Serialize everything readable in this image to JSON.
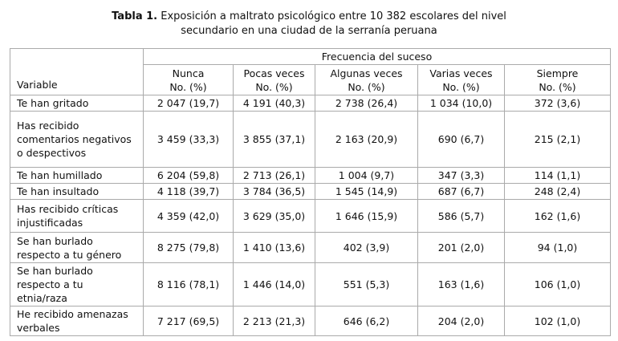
{
  "title": {
    "label": "Tabla 1.",
    "lines": [
      "Exposición a maltrato psicológico entre 10 382 escolares del nivel",
      "secundario en una ciudad de la serranía peruana"
    ]
  },
  "table": {
    "variable_header": "Variable",
    "group_header": "Frecuencia del suceso",
    "columns": [
      {
        "name": "Nunca",
        "unit": "No. (%)"
      },
      {
        "name": "Pocas veces",
        "unit": "No. (%)"
      },
      {
        "name": "Algunas veces",
        "unit": "No. (%)"
      },
      {
        "name": "Varias veces",
        "unit": "No. (%)"
      },
      {
        "name": "Siempre",
        "unit": "No. (%)"
      }
    ],
    "rows": [
      [
        "Te han gritado",
        "2 047 (19,7)",
        "4 191 (40,3)",
        "2 738 (26,4)",
        "1 034 (10,0)",
        "372 (3,6)"
      ],
      [
        "Has recibido comentarios negativos o despectivos",
        "3 459 (33,3)",
        "3 855 (37,1)",
        "2 163 (20,9)",
        "690 (6,7)",
        "215 (2,1)"
      ],
      [
        "Te han humillado",
        "6 204 (59,8)",
        "2 713 (26,1)",
        "1 004 (9,7)",
        "347 (3,3)",
        "114 (1,1)"
      ],
      [
        "Te han insultado",
        "4 118 (39,7)",
        "3 784 (36,5)",
        "1 545 (14,9)",
        "687 (6,7)",
        "248 (2,4)"
      ],
      [
        "Has recibido críticas injustificadas",
        "4 359 (42,0)",
        "3 629 (35,0)",
        "1 646 (15,9)",
        "586 (5,7)",
        "162 (1,6)"
      ],
      [
        "Se han burlado respecto a tu género",
        "8 275 (79,8)",
        "1 410 (13,6)",
        "402 (3,9)",
        "201 (2,0)",
        "94 (1,0)"
      ],
      [
        "Se han burlado respecto a tu etnia/raza",
        "8 116 (78,1)",
        "1 446 (14,0)",
        "551 (5,3)",
        "163 (1,6)",
        "106 (1,0)"
      ],
      [
        "He recibido amenazas verbales",
        "7 217 (69,5)",
        "2 213 (21,3)",
        "646 (6,2)",
        "204 (2,0)",
        "102 (1,0)"
      ]
    ]
  }
}
